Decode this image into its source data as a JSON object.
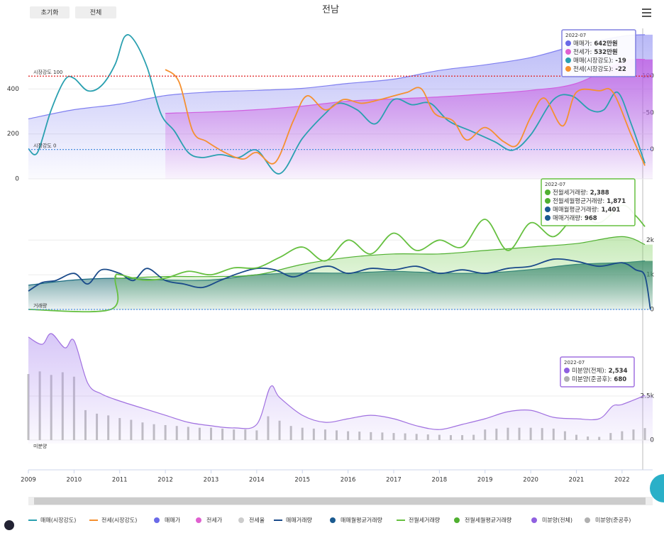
{
  "header": {
    "title": "전남",
    "buttons": [
      "초기화",
      "전체"
    ]
  },
  "chart_data": [
    {
      "type": "line",
      "ylim": [
        0,
        670
      ],
      "yticks": [
        0,
        200,
        400
      ],
      "y2lim": [
        -40,
        165
      ],
      "y2ticks": [
        0,
        50,
        100
      ],
      "grid": true,
      "ref_lines": [
        {
          "value": 100,
          "label": "시장강도 100",
          "color": "#e02020",
          "axis": "y2"
        },
        {
          "value": 0,
          "label": "시장강도 0",
          "color": "#4a8ee0",
          "axis": "y2"
        }
      ],
      "series": [
        {
          "name": "매매가",
          "kind": "area",
          "color": "#8080f0",
          "x": [
            2009,
            2010,
            2011,
            2012,
            2013,
            2014,
            2015,
            2016,
            2017,
            2018,
            2019,
            2020,
            2021,
            2022,
            2022.5
          ],
          "values": [
            267,
            308,
            333,
            371,
            387,
            394,
            403,
            425,
            444,
            483,
            508,
            540,
            594,
            635,
            642
          ]
        },
        {
          "name": "전세가",
          "kind": "area",
          "color": "#d060e0",
          "x": [
            2012,
            2013,
            2014,
            2015,
            2016,
            2017,
            2018,
            2019,
            2020,
            2021,
            2022,
            2022.5
          ],
          "values": [
            292,
            298,
            308,
            324,
            346,
            356,
            365,
            378,
            394,
            425,
            521,
            532
          ]
        },
        {
          "name": "매매(시장강도)",
          "kind": "line",
          "axis": "y2",
          "color": "#2aa0b0",
          "x": [
            2009.0,
            2009.2,
            2009.5,
            2009.8,
            2010.0,
            2010.3,
            2010.6,
            2010.9,
            2011.1,
            2011.3,
            2011.6,
            2011.9,
            2012.2,
            2012.5,
            2012.8,
            2013.2,
            2013.6,
            2014.0,
            2014.5,
            2015.0,
            2015.5,
            2015.8,
            2016.2,
            2016.6,
            2017.0,
            2017.4,
            2017.8,
            2018.2,
            2018.7,
            2019.2,
            2019.6,
            2020.0,
            2020.5,
            2020.9,
            2021.3,
            2021.6,
            2021.9,
            2022.2,
            2022.5
          ],
          "values": [
            1,
            -4,
            54,
            95,
            97,
            80,
            87,
            116,
            153,
            150,
            112,
            49,
            25,
            -4,
            -11,
            -7,
            -11,
            -1,
            -33,
            15,
            49,
            63,
            54,
            35,
            68,
            61,
            63,
            39,
            25,
            11,
            -1,
            20,
            68,
            73,
            54,
            54,
            78,
            35,
            -19
          ]
        },
        {
          "name": "전세(시장강도)",
          "kind": "line",
          "axis": "y2",
          "color": "#f59030",
          "x": [
            2012.0,
            2012.3,
            2012.6,
            2012.9,
            2013.3,
            2013.7,
            2014.0,
            2014.4,
            2014.8,
            2015.1,
            2015.5,
            2015.9,
            2016.3,
            2016.7,
            2017.0,
            2017.3,
            2017.6,
            2017.9,
            2018.3,
            2018.6,
            2019.0,
            2019.4,
            2019.7,
            2020.0,
            2020.3,
            2020.7,
            2021.0,
            2021.5,
            2021.8,
            2022.2,
            2022.5
          ],
          "values": [
            109,
            92,
            25,
            11,
            -4,
            -13,
            -4,
            -18,
            39,
            73,
            54,
            68,
            63,
            68,
            73,
            78,
            83,
            49,
            39,
            13,
            30,
            11,
            6,
            44,
            70,
            32,
            78,
            80,
            78,
            20,
            -22
          ]
        }
      ],
      "tooltip": {
        "date": "2022-07",
        "border": "#8080e0",
        "entries": [
          {
            "name": "매매가:",
            "value": "642만원",
            "color": "#6a6ae8"
          },
          {
            "name": "전세가:",
            "value": "532만원",
            "color": "#e060d0"
          },
          {
            "name": "매매(시장강도):",
            "value": "-19",
            "color": "#2aa0b0"
          },
          {
            "name": "전세(시장강도):",
            "value": "-22",
            "color": "#f59030"
          }
        ]
      }
    },
    {
      "type": "line",
      "ylim": [
        0,
        3500
      ],
      "yticks": [
        0,
        {
          "value": 1000,
          "label": "1k"
        },
        {
          "value": 2000,
          "label": "2k"
        }
      ],
      "grid": true,
      "ref_lines": [
        {
          "value": 0,
          "label": "거래량",
          "color": "#4a8ee0",
          "axis": "y"
        }
      ],
      "series": [
        {
          "name": "매매월평균거래량",
          "kind": "area",
          "color": "#1a6a80",
          "x": [
            2009,
            2010,
            2011,
            2012,
            2013,
            2014,
            2015,
            2016,
            2017,
            2018,
            2019,
            2020,
            2021,
            2022,
            2022.5
          ],
          "values": [
            700,
            850,
            900,
            850,
            850,
            1000,
            1050,
            1050,
            1100,
            1050,
            1050,
            1150,
            1300,
            1350,
            1401
          ]
        },
        {
          "name": "전월세월평균거래량",
          "kind": "area",
          "color": "#50b030",
          "x": [
            2009,
            2010.8,
            2010.9,
            2011,
            2012,
            2013,
            2014,
            2015,
            2016,
            2017,
            2018,
            2019,
            2020,
            2021,
            2022,
            2022.5
          ],
          "values": [
            0,
            0,
            900,
            900,
            950,
            950,
            1000,
            1300,
            1500,
            1600,
            1600,
            1700,
            1800,
            1900,
            2100,
            1871
          ]
        },
        {
          "name": "매매거래량",
          "kind": "line",
          "color": "#1a4a8a",
          "x": [
            2009,
            2009.3,
            2009.6,
            2010,
            2010.3,
            2010.6,
            2011,
            2011.3,
            2011.6,
            2012,
            2012.4,
            2012.8,
            2013.2,
            2013.6,
            2014,
            2014.4,
            2014.8,
            2015.2,
            2015.6,
            2016,
            2016.5,
            2017,
            2017.5,
            2018,
            2018.5,
            2019,
            2019.5,
            2020,
            2020.5,
            2021,
            2021.5,
            2022,
            2022.3,
            2022.5,
            2022.62
          ],
          "values": [
            530,
            775,
            836,
            1040,
            735,
            1143,
            1040,
            836,
            1184,
            836,
            735,
            633,
            836,
            1040,
            1184,
            1143,
            940,
            1143,
            1245,
            1040,
            1184,
            1143,
            1245,
            1040,
            1143,
            1040,
            1184,
            1245,
            1449,
            1388,
            1245,
            1347,
            1143,
            968,
            0
          ]
        },
        {
          "name": "전월세거래량",
          "kind": "line",
          "color": "#66c040",
          "x": [
            2009,
            2010.8,
            2010.9,
            2011,
            2011.5,
            2012,
            2012.5,
            2013,
            2013.5,
            2014,
            2014.5,
            2015,
            2015.5,
            2016,
            2016.5,
            2017,
            2017.5,
            2018,
            2018.5,
            2019,
            2019.5,
            2020,
            2020.5,
            2021,
            2021.5,
            2022,
            2022.3,
            2022.5
          ],
          "values": [
            0,
            0,
            900,
            1000,
            850,
            900,
            1100,
            1000,
            1200,
            1200,
            1500,
            1800,
            1400,
            2000,
            1600,
            2200,
            1700,
            2000,
            1800,
            2600,
            1700,
            2500,
            2100,
            2700,
            2500,
            3000,
            2700,
            2388
          ]
        }
      ],
      "tooltip": {
        "date": "2022-07",
        "border": "#66c040",
        "entries": [
          {
            "name": "전월세거래량:",
            "value": "2,388",
            "color": "#50b030"
          },
          {
            "name": "전월세월평균거래량:",
            "value": "1,871",
            "color": "#50b030"
          },
          {
            "name": "매매월평균거래량:",
            "value": "1,401",
            "color": "#1a5a90"
          },
          {
            "name": "매매거래량:",
            "value": "968",
            "color": "#1a5a90"
          }
        ]
      }
    },
    {
      "type": "line",
      "ylim": [
        -200,
        6250
      ],
      "yticks": [
        0,
        {
          "value": 2500,
          "label": "2.5k"
        }
      ],
      "grid": true,
      "xlim": [
        2009,
        2022.67
      ],
      "xticks": [
        2009,
        2010,
        2011,
        2012,
        2013,
        2014,
        2015,
        2016,
        2017,
        2018,
        2019,
        2020,
        2021,
        2022
      ],
      "axis_label": "미분양",
      "series": [
        {
          "name": "미분양(준공후)",
          "kind": "bar",
          "color": "#c0c0c0",
          "x": [
            2009,
            2009.25,
            2009.5,
            2009.75,
            2010,
            2010.25,
            2010.5,
            2010.75,
            2011,
            2011.25,
            2011.5,
            2011.75,
            2012,
            2012.25,
            2012.5,
            2012.75,
            2013,
            2013.25,
            2013.5,
            2013.75,
            2014,
            2014.25,
            2014.5,
            2014.75,
            2015,
            2015.25,
            2015.5,
            2015.75,
            2016,
            2016.25,
            2016.5,
            2016.75,
            2017,
            2017.25,
            2017.5,
            2017.75,
            2018,
            2018.25,
            2018.5,
            2018.75,
            2019,
            2019.25,
            2019.5,
            2019.75,
            2020,
            2020.25,
            2020.5,
            2020.75,
            2021,
            2021.25,
            2021.5,
            2021.75,
            2022,
            2022.25,
            2022.5
          ],
          "values": [
            3750,
            3900,
            3700,
            3850,
            3600,
            1700,
            1500,
            1400,
            1250,
            1150,
            1000,
            900,
            850,
            800,
            750,
            700,
            700,
            650,
            600,
            600,
            550,
            1350,
            1100,
            800,
            700,
            650,
            600,
            550,
            500,
            480,
            450,
            430,
            400,
            380,
            350,
            320,
            300,
            280,
            280,
            300,
            600,
            650,
            700,
            700,
            700,
            680,
            650,
            500,
            300,
            200,
            180,
            400,
            500,
            600,
            680
          ]
        },
        {
          "name": "미분양(전체)",
          "kind": "area",
          "color": "#a070e0",
          "x": [
            2009.0,
            2009.3,
            2009.5,
            2009.8,
            2010.0,
            2010.3,
            2010.6,
            2011.0,
            2011.5,
            2012.0,
            2012.5,
            2013.0,
            2013.5,
            2014.0,
            2014.3,
            2014.5,
            2015.0,
            2015.5,
            2016.0,
            2016.5,
            2017.0,
            2017.5,
            2018.0,
            2018.5,
            2019.0,
            2019.5,
            2020.0,
            2020.5,
            2021.0,
            2021.5,
            2021.8,
            2022.0,
            2022.5
          ],
          "values": [
            5850,
            5440,
            6050,
            5240,
            5650,
            3230,
            2620,
            2220,
            1810,
            1410,
            1010,
            810,
            690,
            890,
            3020,
            2420,
            1410,
            1010,
            1210,
            1410,
            1210,
            810,
            600,
            890,
            1210,
            1610,
            1690,
            1290,
            1210,
            1210,
            1940,
            2020,
            2534
          ]
        }
      ],
      "tooltip": {
        "date": "2022-07",
        "border": "#a070e0",
        "entries": [
          {
            "name": "미분양(전체):",
            "value": "2,534",
            "color": "#9060e0"
          },
          {
            "name": "미분양(준공후):",
            "value": "680",
            "color": "#b0b0b0"
          }
        ]
      }
    }
  ],
  "legend": [
    {
      "name": "매매(시장강도)",
      "color": "#2aa0b0",
      "marker": "line"
    },
    {
      "name": "전세(시장강도)",
      "color": "#f59030",
      "marker": "line"
    },
    {
      "name": "매매가",
      "color": "#6a6ae8",
      "marker": "dot"
    },
    {
      "name": "전세가",
      "color": "#e060d0",
      "marker": "dot"
    },
    {
      "name": "전세율",
      "color": "#cccccc",
      "marker": "dot",
      "disabled": true
    },
    {
      "name": "매매거래량",
      "color": "#1a4a8a",
      "marker": "line"
    },
    {
      "name": "매매월평균거래량",
      "color": "#1a5a90",
      "marker": "dot"
    },
    {
      "name": "전월세거래량",
      "color": "#66c040",
      "marker": "line"
    },
    {
      "name": "전월세월평균거래량",
      "color": "#50b030",
      "marker": "dot"
    },
    {
      "name": "미분양(전체)",
      "color": "#9060e0",
      "marker": "dot"
    },
    {
      "name": "미분양(준공후)",
      "color": "#b0b0b0",
      "marker": "dot"
    }
  ]
}
